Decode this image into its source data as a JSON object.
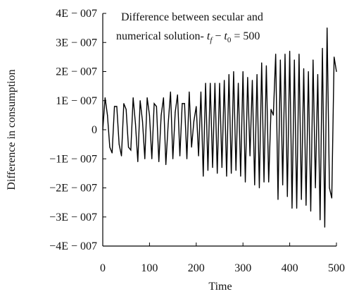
{
  "chart_data": {
    "type": "line",
    "title": "",
    "annotation": {
      "line1": "Difference between secular and",
      "line2_prefix": "numerical solution- ",
      "line2_tf": "t",
      "line2_tf_sub": "f",
      "line2_minus": " − ",
      "line2_t0": "t",
      "line2_t0_sub": "0",
      "line2_suffix": " = 500"
    },
    "xlabel": "Time",
    "ylabel": "Difference in consumption",
    "xlim": [
      0,
      500
    ],
    "ylim": [
      -4e-07,
      4e-07
    ],
    "x_ticks": [
      0,
      100,
      200,
      300,
      400,
      500
    ],
    "x_tick_labels": [
      "0",
      "100",
      "200",
      "300",
      "400",
      "500"
    ],
    "y_ticks": [
      4e-07,
      3e-07,
      2e-07,
      1e-07,
      0,
      -1e-07,
      -2e-07,
      -3e-07,
      -4e-07
    ],
    "y_tick_labels": [
      "4E − 007",
      "3E − 007",
      "2E − 007",
      "1E − 007",
      "0",
      "−1E − 007",
      "−2E − 007",
      "−3E − 007",
      "−4E − 007"
    ],
    "grid": false,
    "line_color": "#000000",
    "series": [
      {
        "x": [
          0,
          5,
          10,
          15,
          20,
          25,
          30,
          35,
          40,
          45,
          50,
          55,
          60,
          65,
          70,
          75,
          80,
          85,
          90,
          95,
          100,
          105,
          110,
          115,
          120,
          125,
          130,
          135,
          140,
          145,
          150,
          155,
          160,
          165,
          170,
          175,
          180,
          185,
          190,
          195,
          200,
          205,
          210,
          215,
          220,
          225,
          230,
          235,
          240,
          245,
          250,
          255,
          260,
          265,
          270,
          275,
          280,
          285,
          290,
          295,
          300,
          305,
          310,
          315,
          320,
          325,
          330,
          335,
          340,
          345,
          350,
          355,
          360,
          365,
          370,
          375,
          380,
          385,
          390,
          395,
          400,
          405,
          410,
          415,
          420,
          425,
          430,
          435,
          440,
          445,
          450,
          455,
          460,
          465,
          470,
          475,
          480,
          485,
          490,
          495,
          500
        ],
        "values": [
          0,
          1.1e-07,
          5e-08,
          -6e-08,
          -8e-08,
          8e-08,
          8e-08,
          -5e-08,
          -9e-08,
          9e-08,
          7e-08,
          -6e-08,
          -7e-08,
          1.1e-07,
          2e-08,
          -1.1e-07,
          1e-07,
          3e-08,
          -1e-07,
          1.1e-07,
          5e-08,
          -1e-07,
          9e-08,
          8e-08,
          -1.1e-07,
          5e-08,
          1.1e-07,
          -1.2e-07,
          2e-08,
          1.3e-07,
          -1e-07,
          6e-08,
          1.2e-07,
          -9e-08,
          9e-08,
          9e-08,
          -1e-07,
          1.3e-07,
          -6e-08,
          3e-08,
          8e-08,
          -9e-08,
          1.3e-07,
          -1.6e-07,
          1.6e-07,
          -1.4e-07,
          1.6e-07,
          -1.3e-07,
          1.6e-07,
          -1.5e-07,
          1.6e-07,
          -1.3e-07,
          1.7e-07,
          -1.6e-07,
          1.9e-07,
          -1.5e-07,
          2e-07,
          -1.4e-07,
          1.6e-07,
          -1.6e-07,
          2e-07,
          -1.8e-07,
          1.8e-07,
          -9e-08,
          1.7e-07,
          -1.9e-07,
          1.9e-07,
          -2e-07,
          2.3e-07,
          -1.8e-07,
          2.2e-07,
          -1.8e-07,
          7e-08,
          5e-08,
          2.6e-07,
          -2.4e-07,
          2.4e-07,
          -1.9e-07,
          2.6e-07,
          -2.3e-07,
          2.7e-07,
          -2.7e-07,
          2.4e-07,
          -2.7e-07,
          2.6e-07,
          -2.4e-07,
          2.1e-07,
          -2.6e-07,
          2e-07,
          -2.8e-07,
          2.4e-07,
          -2e-07,
          1.9e-07,
          -3.1e-07,
          2.8e-07,
          -3.35e-07,
          3.5e-07,
          -2e-07,
          -2.35e-07,
          2.5e-07,
          2e-07
        ]
      }
    ]
  }
}
